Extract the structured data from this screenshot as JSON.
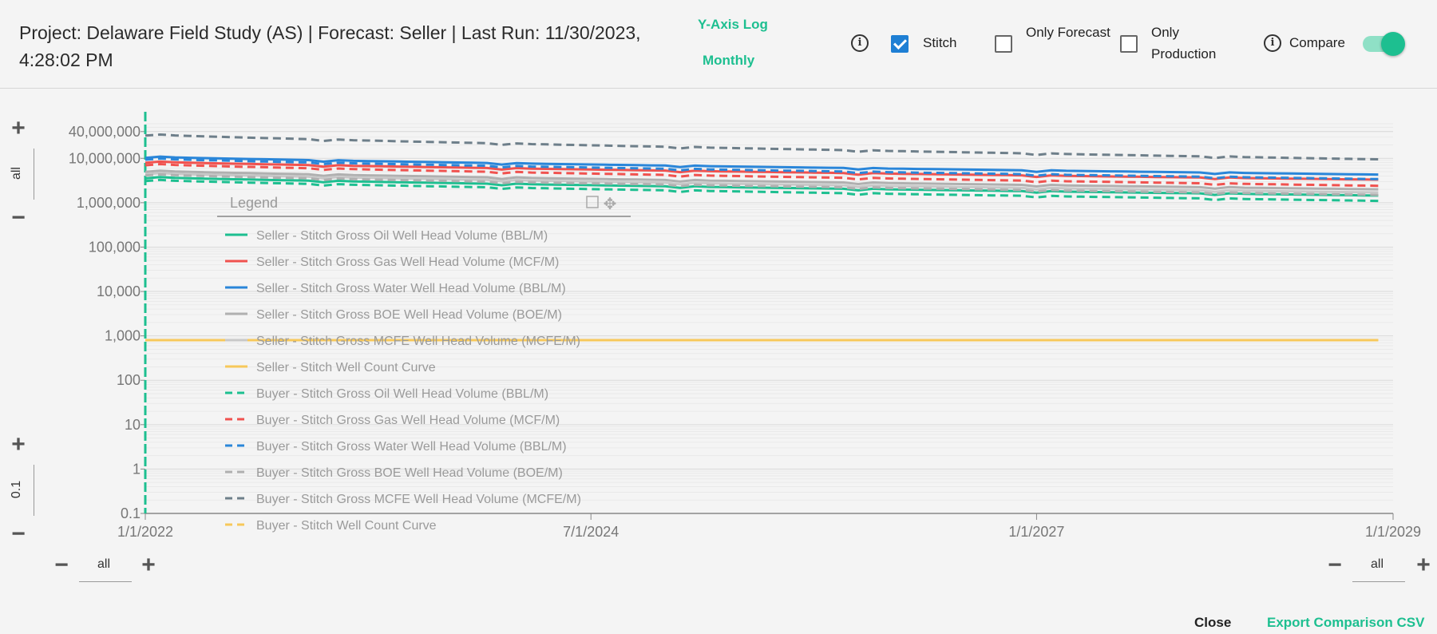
{
  "header": {
    "title": "Project: Delaware Field Study (AS) | Forecast: Seller | Last Run: 11/30/2023, 4:28:02 PM",
    "y_axis_toggle": "Y-Axis Log",
    "period_toggle": "Monthly",
    "stitch_label": "Stitch",
    "stitch_checked": true,
    "only_forecast_label": "Only Forecast",
    "only_forecast_checked": false,
    "only_production_label": "Only Production",
    "only_production_checked": false,
    "compare_label": "Compare",
    "compare_on": true,
    "accent_color": "#1dbf90"
  },
  "y_zoom": {
    "top_range": "all",
    "bottom_range": "0.1",
    "plus": "+",
    "minus": "−"
  },
  "x_zoom": {
    "left_range": "all",
    "right_range": "all",
    "plus": "+",
    "minus": "−"
  },
  "footer": {
    "close_label": "Close",
    "export_label": "Export Comparison CSV"
  },
  "chart_data": {
    "type": "line",
    "y_scale": "log",
    "ylim": [
      0.1,
      60000000
    ],
    "y_ticks": [
      "0.1",
      "1",
      "10",
      "100",
      "1,000",
      "10,000",
      "100,000",
      "1,000,000",
      "10,000,000",
      "40,000,000"
    ],
    "y_tick_values": [
      0.1,
      1,
      10,
      100,
      1000,
      10000,
      100000,
      1000000,
      10000000,
      40000000
    ],
    "x_ticks": [
      "1/1/2022",
      "7/1/2024",
      "1/1/2027",
      "1/1/2029"
    ],
    "x_tick_values": [
      "2022-01",
      "2024-07",
      "2027-01",
      "2029-01"
    ],
    "x_end": "2028-12",
    "legend_title": "Legend",
    "legend_position": "upper-left",
    "series": [
      {
        "name": "Seller - Stitch Gross Oil Well Head Volume (BBL/M)",
        "color": "#1dbf90",
        "dash": false,
        "start": 3800000,
        "end": 1450000
      },
      {
        "name": "Seller - Stitch Gross Gas Well Head Volume (MCF/M)",
        "color": "#f0524f",
        "dash": false,
        "start": 8500000,
        "end": 3300000
      },
      {
        "name": "Seller - Stitch Gross Water Well Head Volume (BBL/M)",
        "color": "#2a86d9",
        "dash": false,
        "start": 11000000,
        "end": 4300000
      },
      {
        "name": "Seller - Stitch Gross BOE Well Head Volume (BOE/M)",
        "color": "#b0b0b0",
        "dash": false,
        "start": 5300000,
        "end": 2000000
      },
      {
        "name": "Seller - Stitch Gross MCFE Well Head Volume (MCFE/M)",
        "color": "#c8c8c8",
        "dash": false,
        "start": 4700000,
        "end": 1700000
      },
      {
        "name": "Seller - Stitch Well Count Curve",
        "color": "#f7c85a",
        "dash": false,
        "start": 800,
        "end": 800
      },
      {
        "name": "Buyer - Stitch Gross Oil Well Head Volume (BBL/M)",
        "color": "#1dbf90",
        "dash": true,
        "start": 3300000,
        "end": 1100000
      },
      {
        "name": "Buyer - Stitch Gross Gas Well Head Volume (MCF/M)",
        "color": "#f0524f",
        "dash": true,
        "start": 7500000,
        "end": 2400000
      },
      {
        "name": "Buyer - Stitch Gross Water Well Head Volume (BBL/M)",
        "color": "#2a86d9",
        "dash": true,
        "start": 10000000,
        "end": 3400000
      },
      {
        "name": "Buyer - Stitch Gross BOE Well Head Volume (BOE/M)",
        "color": "#b0b0b0",
        "dash": true,
        "start": 4400000,
        "end": 1500000
      },
      {
        "name": "Buyer - Stitch Gross MCFE Well Head Volume (MCFE/M)",
        "color": "#6e7f8a",
        "dash": true,
        "start": 35000000,
        "end": 9500000
      },
      {
        "name": "Buyer - Stitch Well Count Curve",
        "color": "#f7c85a",
        "dash": true,
        "start": 800,
        "end": 800
      }
    ]
  }
}
